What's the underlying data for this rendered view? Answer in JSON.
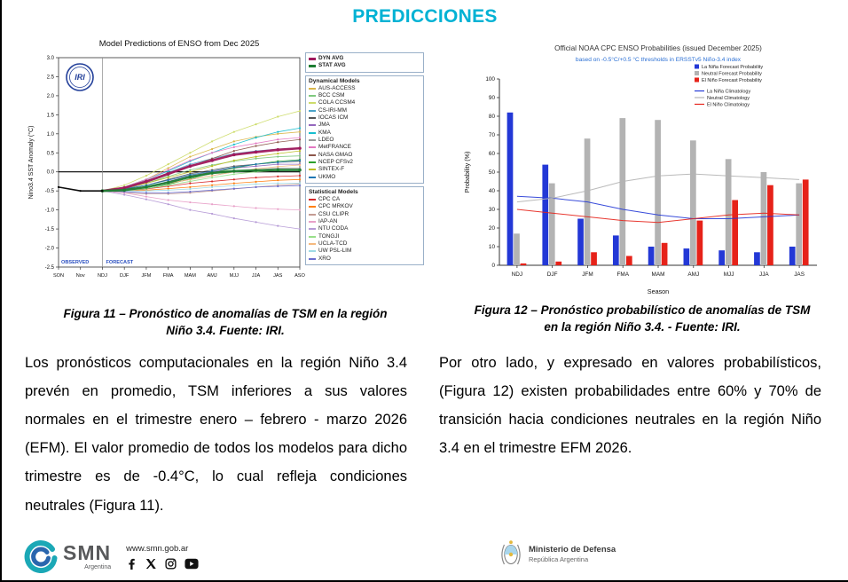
{
  "page": {
    "title": "PREDICCIONES",
    "footer": {
      "smn_url": "www.smn.gob.ar",
      "smn_name": "SMN",
      "smn_sub": "Argentina",
      "ministry_line1": "Ministerio de Defensa",
      "ministry_line2": "República Argentina"
    }
  },
  "colors": {
    "title_accent": "#00b2d4",
    "la_nina_blue": "#2338d6",
    "neutral_gray": "#b3b3b3",
    "el_nino_red": "#e62219",
    "dyn_avg_magenta": "#a0195c",
    "stat_avg_green": "#1e7d32"
  },
  "figures": {
    "fig11_caption_line1": "Figura 11 – Pronóstico de anomalías de TSM en la región",
    "fig11_caption_line2": "Niño 3.4. Fuente: IRI.",
    "fig12_caption_line1": "Figura 12 – Pronóstico probabilístico de anomalías de TSM",
    "fig12_caption_line2": "en la región Niño 3.4. - Fuente: IRI."
  },
  "paragraphs": {
    "left": "Los pronósticos computacionales en la región Niño 3.4 prevén en promedio, TSM inferiores a sus valores normales en el trimestre enero – febrero - marzo 2026 (EFM). El valor promedio de todos los modelos para dicho trimestre es de -0.4°C, lo cual refleja condiciones neutrales (Figura 11).",
    "right": "Por otro lado, y expresado en valores probabilísticos, (Figura 12) existen probabilidades entre 60% y 70% de transición hacia condiciones neutrales en la región Niño 3.4 en el trimestre EFM 2026."
  },
  "chart_data": [
    {
      "type": "line",
      "title": "Model Predictions of ENSO from Dec 2025",
      "ylabel": "Nino3.4 SST Anomaly (°C)",
      "ylim": [
        -2.5,
        3.0
      ],
      "ytick_step": 0.5,
      "x": [
        "SON",
        "Nov",
        "NDJ",
        "DJF",
        "JFM",
        "FMA",
        "MAM",
        "AMJ",
        "MJJ",
        "JJA",
        "JAS",
        "ASO"
      ],
      "forecast_start_index": 2,
      "observed_label": "OBSERVED",
      "forecast_label": "FORECAST",
      "logo_text": "IRI",
      "observed": {
        "name": "Observed",
        "color": "#000000",
        "values": [
          -0.4,
          -0.5,
          -0.5
        ]
      },
      "avg_series": [
        {
          "name": "DYN AVG",
          "color": "#a0195c",
          "values": [
            -0.5,
            -0.42,
            -0.25,
            -0.05,
            0.15,
            0.3,
            0.45,
            0.52,
            0.58,
            0.62
          ]
        },
        {
          "name": "STAT AVG",
          "color": "#1e7d32",
          "values": [
            -0.5,
            -0.48,
            -0.4,
            -0.28,
            -0.13,
            -0.03,
            0.02,
            0.04,
            0.05,
            0.05
          ]
        }
      ],
      "legend_groups": [
        "Dynamical Models",
        "Statistical Models"
      ],
      "series": [
        {
          "name": "AUS-ACCESS",
          "group": "Dynamical Models",
          "color": "#d9b64a",
          "values": [
            -0.5,
            -0.4,
            -0.2,
            0.1,
            0.4,
            0.6,
            0.8,
            0.92,
            1.0,
            1.05
          ]
        },
        {
          "name": "BCC CSM",
          "group": "Dynamical Models",
          "color": "#7fc97f",
          "values": [
            -0.5,
            -0.45,
            -0.3,
            -0.12,
            0.05,
            0.18,
            0.28,
            0.35,
            0.4,
            0.42
          ]
        },
        {
          "name": "COLA CCSM4",
          "group": "Dynamical Models",
          "color": "#cddc6a",
          "values": [
            -0.5,
            -0.35,
            -0.1,
            0.2,
            0.5,
            0.8,
            1.05,
            1.25,
            1.45,
            1.6
          ]
        },
        {
          "name": "CS-IRI-MM",
          "group": "Dynamical Models",
          "color": "#4aa3c8",
          "values": [
            -0.5,
            -0.4,
            -0.25,
            -0.02,
            0.2,
            0.35,
            0.48,
            0.55,
            0.6,
            0.62
          ]
        },
        {
          "name": "IOCAS ICM",
          "group": "Dynamical Models",
          "color": "#555555",
          "values": [
            -0.5,
            -0.45,
            -0.35,
            -0.2,
            -0.05,
            0.05,
            0.15,
            0.2,
            0.25,
            0.28
          ]
        },
        {
          "name": "JMA",
          "group": "Dynamical Models",
          "color": "#9467bd",
          "values": [
            -0.5,
            -0.5,
            -0.4,
            -0.25,
            -0.1,
            0.0,
            0.1,
            0.15,
            0.2,
            0.2
          ]
        },
        {
          "name": "KMA",
          "group": "Dynamical Models",
          "color": "#17becf",
          "values": [
            -0.5,
            -0.4,
            -0.2,
            0.02,
            0.28,
            0.5,
            0.72,
            0.9,
            1.05,
            1.15
          ]
        },
        {
          "name": "LDEO",
          "group": "Dynamical Models",
          "color": "#999999",
          "values": [
            -0.5,
            -0.45,
            -0.4,
            -0.3,
            -0.2,
            -0.1,
            0.0,
            0.05,
            0.1,
            0.1
          ]
        },
        {
          "name": "MetFRANCE",
          "group": "Dynamical Models",
          "color": "#e377c2",
          "values": [
            -0.5,
            -0.4,
            -0.2,
            0.05,
            0.3,
            0.5,
            0.65,
            0.75,
            0.85,
            0.9
          ]
        },
        {
          "name": "NASA GMAO",
          "group": "Dynamical Models",
          "color": "#8c564b",
          "values": [
            -0.5,
            -0.44,
            -0.28,
            -0.08,
            0.15,
            0.35,
            0.55,
            0.68,
            0.78,
            0.85
          ]
        },
        {
          "name": "NCEP CFSv2",
          "group": "Dynamical Models",
          "color": "#2ca02c",
          "values": [
            -0.5,
            -0.5,
            -0.45,
            -0.33,
            -0.18,
            -0.03,
            0.1,
            0.2,
            0.28,
            0.32
          ]
        },
        {
          "name": "SINTEX-F",
          "group": "Dynamical Models",
          "color": "#bcbd22",
          "values": [
            -0.5,
            -0.42,
            -0.3,
            -0.15,
            0.0,
            0.15,
            0.3,
            0.4,
            0.48,
            0.55
          ]
        },
        {
          "name": "UKMO",
          "group": "Dynamical Models",
          "color": "#1f77b4",
          "values": [
            -0.5,
            -0.45,
            -0.35,
            -0.22,
            -0.08,
            0.02,
            0.12,
            0.2,
            0.25,
            0.3
          ]
        },
        {
          "name": "CPC CA",
          "group": "Statistical Models",
          "color": "#d62728",
          "values": [
            -0.5,
            -0.5,
            -0.45,
            -0.38,
            -0.3,
            -0.25,
            -0.2,
            -0.15,
            -0.12,
            -0.1
          ]
        },
        {
          "name": "CPC MRKOV",
          "group": "Statistical Models",
          "color": "#ff7f0e",
          "values": [
            -0.5,
            -0.5,
            -0.48,
            -0.44,
            -0.4,
            -0.35,
            -0.3,
            -0.26,
            -0.22,
            -0.2
          ]
        },
        {
          "name": "CSU CLIPR",
          "group": "Statistical Models",
          "color": "#c49c94",
          "values": [
            -0.5,
            -0.55,
            -0.58,
            -0.58,
            -0.55,
            -0.5,
            -0.45,
            -0.4,
            -0.35,
            -0.32
          ]
        },
        {
          "name": "IAP-AN",
          "group": "Statistical Models",
          "color": "#e8a0c8",
          "values": [
            -0.5,
            -0.55,
            -0.65,
            -0.74,
            -0.8,
            -0.85,
            -0.9,
            -0.95,
            -0.98,
            -1.0
          ]
        },
        {
          "name": "NTU CODA",
          "group": "Statistical Models",
          "color": "#b59ad6",
          "values": [
            -0.5,
            -0.6,
            -0.72,
            -0.85,
            -1.0,
            -1.1,
            -1.22,
            -1.32,
            -1.42,
            -1.5
          ]
        },
        {
          "name": "TONGJI",
          "group": "Statistical Models",
          "color": "#98df8a",
          "values": [
            -0.5,
            -0.5,
            -0.44,
            -0.35,
            -0.25,
            -0.15,
            -0.06,
            0.0,
            0.04,
            0.05
          ]
        },
        {
          "name": "UCLA-TCD",
          "group": "Statistical Models",
          "color": "#f5b97f",
          "values": [
            -0.5,
            -0.46,
            -0.4,
            -0.3,
            -0.2,
            -0.1,
            0.0,
            0.08,
            0.14,
            0.18
          ]
        },
        {
          "name": "UW PSL-LIM",
          "group": "Statistical Models",
          "color": "#9edae5",
          "values": [
            -0.5,
            -0.5,
            -0.5,
            -0.48,
            -0.45,
            -0.4,
            -0.36,
            -0.32,
            -0.3,
            -0.3
          ]
        },
        {
          "name": "XRO",
          "group": "Statistical Models",
          "color": "#6b6ecf",
          "values": [
            -0.5,
            -0.52,
            -0.55,
            -0.55,
            -0.52,
            -0.48,
            -0.44,
            -0.4,
            -0.38,
            -0.36
          ]
        }
      ]
    },
    {
      "type": "bar",
      "title": "Official NOAA CPC ENSO Probabilities (issued December 2025)",
      "subtitle": "based on -0.5°C/+0.5 °C thresholds in ERSSTv5 Niño-3.4 index",
      "xlabel": "Season",
      "ylabel": "Probability (%)",
      "ylim": [
        0,
        100
      ],
      "ytick_step": 10,
      "categories": [
        "NDJ",
        "DJF",
        "JFM",
        "FMA",
        "MAM",
        "AMJ",
        "MJJ",
        "JJA",
        "JAS"
      ],
      "bar_series": [
        {
          "name": "La Niña Forecast Probability",
          "color": "#2338d6",
          "values": [
            82,
            54,
            25,
            16,
            10,
            9,
            8,
            7,
            10
          ]
        },
        {
          "name": "Neutral Forecast Probability",
          "color": "#b3b3b3",
          "values": [
            17,
            44,
            68,
            79,
            78,
            67,
            57,
            50,
            44
          ]
        },
        {
          "name": "El Niño Forecast Probability",
          "color": "#e62219",
          "values": [
            1,
            2,
            7,
            5,
            12,
            24,
            35,
            43,
            46
          ]
        }
      ],
      "line_series": [
        {
          "name": "La Niña Climatology",
          "color": "#2338d6",
          "values": [
            37,
            36,
            34,
            30,
            27,
            25,
            25,
            26,
            27
          ]
        },
        {
          "name": "Neutral Climatology",
          "color": "#b3b3b3",
          "values": [
            34,
            36,
            40,
            45,
            48,
            49,
            48,
            47,
            46
          ]
        },
        {
          "name": "El Niño Climatology",
          "color": "#e62219",
          "values": [
            30,
            28,
            26,
            24,
            23,
            25,
            27,
            28,
            27
          ]
        }
      ]
    }
  ]
}
